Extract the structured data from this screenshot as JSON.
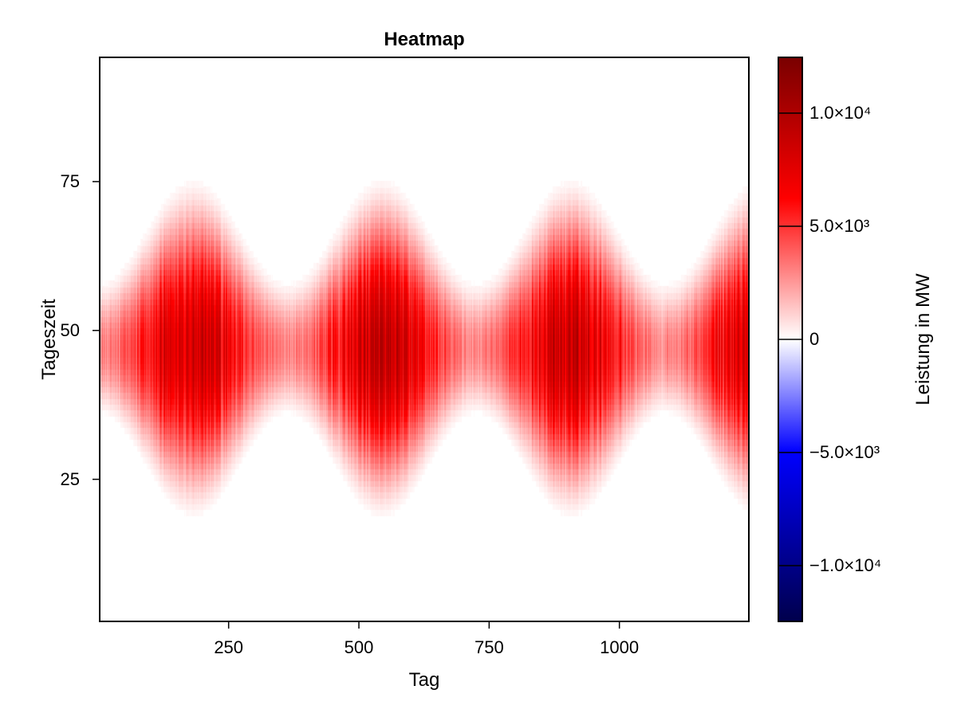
{
  "chart_data": {
    "type": "heatmap",
    "title": "Heatmap",
    "xlabel": "Tag",
    "ylabel": "Tageszeit",
    "colorbar_label": "Leistung in MW",
    "xlim": [
      1,
      1250
    ],
    "ylim": [
      1,
      96
    ],
    "xticks": [
      250,
      500,
      750,
      1000
    ],
    "yticks": [
      25,
      50,
      75
    ],
    "clim": [
      -12500,
      12500
    ],
    "colorbar_ticks": [
      {
        "value": 10000,
        "label": "1.0×10⁴"
      },
      {
        "value": 5000,
        "label": "5.0×10³"
      },
      {
        "value": 0,
        "label": "0"
      },
      {
        "value": -5000,
        "label": "−5.0×10³"
      },
      {
        "value": -10000,
        "label": "−1.0×10⁴"
      }
    ],
    "colormap": [
      "#00004d",
      "#0000ff",
      "#ffffff",
      "#ff0000",
      "#7a0000"
    ],
    "pattern": {
      "description": "seasonal daytime generation",
      "season_period_days": 365,
      "peak_days": [
        180,
        545,
        910
      ],
      "midday_slot": 47,
      "summer_half_width_slots": 30,
      "winter_half_width_slots": 12,
      "peak_power_mw": 11000
    },
    "grid": false
  }
}
